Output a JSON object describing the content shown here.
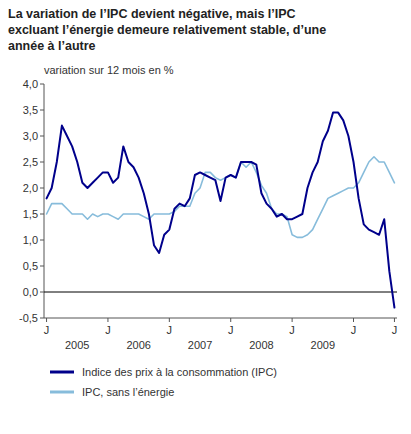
{
  "chart_data": {
    "type": "line",
    "title": "La variation de l’IPC devient négative, mais l’IPC\nexcluant l’énergie demeure relativement stable, d’une\nannée à l’autre",
    "subtitle": "variation sur 12 mois en %",
    "categories": [
      "J",
      null,
      null,
      null,
      null,
      null,
      null,
      null,
      null,
      null,
      null,
      null,
      "J",
      null,
      null,
      null,
      null,
      null,
      null,
      null,
      null,
      null,
      null,
      null,
      "J",
      null,
      null,
      null,
      null,
      null,
      null,
      null,
      null,
      null,
      null,
      null,
      "J",
      null,
      null,
      null,
      null,
      null,
      null,
      null,
      null,
      null,
      null,
      null,
      "J",
      null,
      null,
      null,
      null,
      null,
      null,
      null,
      null,
      null,
      null,
      null,
      "J",
      null,
      null,
      null,
      null,
      null,
      null,
      null,
      "J"
    ],
    "category_groups": [
      {
        "label": "2005",
        "index": 6
      },
      {
        "label": "2006",
        "index": 18
      },
      {
        "label": "2007",
        "index": 30
      },
      {
        "label": "2008",
        "index": 42
      },
      {
        "label": "2009",
        "index": 54
      }
    ],
    "series": [
      {
        "name": "Indice des prix à la consommation (IPC)",
        "color": "#00008B",
        "values": [
          1.8,
          2.0,
          2.5,
          3.2,
          3.0,
          2.8,
          2.5,
          2.1,
          2.0,
          2.1,
          2.2,
          2.3,
          2.3,
          2.1,
          2.2,
          2.8,
          2.5,
          2.4,
          2.2,
          1.9,
          1.5,
          0.9,
          0.75,
          1.1,
          1.2,
          1.6,
          1.7,
          1.65,
          1.8,
          2.25,
          2.3,
          2.25,
          2.2,
          2.15,
          1.75,
          2.2,
          2.25,
          2.2,
          2.5,
          2.5,
          2.5,
          2.45,
          1.9,
          1.7,
          1.6,
          1.45,
          1.5,
          1.4,
          1.4,
          1.45,
          1.5,
          2.0,
          2.3,
          2.5,
          2.9,
          3.1,
          3.45,
          3.45,
          3.3,
          3.0,
          2.5,
          1.8,
          1.3,
          1.2,
          1.15,
          1.1,
          1.4,
          0.4,
          -0.3
        ]
      },
      {
        "name": "IPC, sans l’énergie",
        "color": "#87BCDB",
        "values": [
          1.5,
          1.7,
          1.7,
          1.7,
          1.6,
          1.5,
          1.5,
          1.5,
          1.4,
          1.5,
          1.45,
          1.5,
          1.5,
          1.45,
          1.4,
          1.5,
          1.5,
          1.5,
          1.5,
          1.45,
          1.4,
          1.5,
          1.5,
          1.5,
          1.5,
          1.55,
          1.65,
          1.65,
          1.65,
          1.9,
          2.0,
          2.3,
          2.3,
          2.2,
          2.15,
          2.2,
          2.25,
          2.2,
          2.5,
          2.4,
          2.5,
          2.3,
          2.05,
          1.9,
          1.6,
          1.5,
          1.5,
          1.45,
          1.1,
          1.05,
          1.05,
          1.1,
          1.2,
          1.4,
          1.6,
          1.8,
          1.85,
          1.9,
          1.95,
          2.0,
          2.0,
          2.1,
          2.3,
          2.5,
          2.6,
          2.5,
          2.5,
          2.3,
          2.1
        ]
      }
    ],
    "reference_lines": [
      0
    ],
    "ylim": [
      -0.5,
      4.0
    ],
    "yticks": [
      {
        "value": -0.5,
        "label": "-0,5"
      },
      {
        "value": 0.0,
        "label": "0,0"
      },
      {
        "value": 0.5,
        "label": "0,5"
      },
      {
        "value": 1.0,
        "label": "1,0"
      },
      {
        "value": 1.5,
        "label": "1,5"
      },
      {
        "value": 2.0,
        "label": "2,0"
      },
      {
        "value": 2.5,
        "label": "2,5"
      },
      {
        "value": 3.0,
        "label": "3,0"
      },
      {
        "value": 3.5,
        "label": "3,5"
      },
      {
        "value": 4.0,
        "label": "4,0"
      }
    ],
    "grid": false,
    "legend": "bottom"
  }
}
